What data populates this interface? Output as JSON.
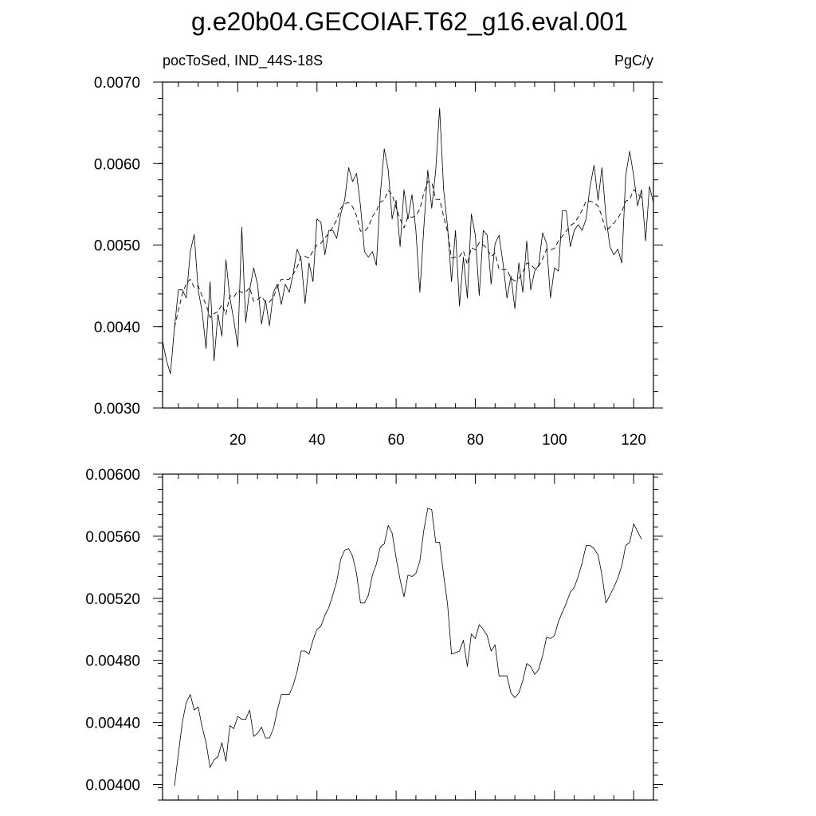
{
  "title": "g.e20b04.GECOIAF.T62_g16.eval.001",
  "chart_data": [
    {
      "type": "line",
      "left_label": "pocToSed, IND_44S-18S",
      "right_label": "PgC/y",
      "xlim": [
        1,
        125
      ],
      "ylim": [
        0.003,
        0.007
      ],
      "xticks": [
        20,
        40,
        60,
        80,
        100,
        120
      ],
      "xtick_labels": [
        "20",
        "40",
        "60",
        "80",
        "100",
        "120"
      ],
      "yticks": [
        0.003,
        0.004,
        0.005,
        0.006,
        0.007
      ],
      "ytick_labels": [
        "0.0030",
        "0.0040",
        "0.0050",
        "0.0060",
        "0.0070"
      ],
      "series": [
        {
          "style": "solid",
          "x": [
            1,
            2,
            3,
            4,
            5,
            6,
            7,
            8,
            9,
            10,
            11,
            12,
            13,
            14,
            15,
            16,
            17,
            18,
            19,
            20,
            21,
            22,
            23,
            24,
            25,
            26,
            27,
            28,
            29,
            30,
            31,
            32,
            33,
            34,
            35,
            36,
            37,
            38,
            39,
            40,
            41,
            42,
            43,
            44,
            45,
            46,
            47,
            48,
            49,
            50,
            51,
            52,
            53,
            54,
            55,
            56,
            57,
            58,
            59,
            60,
            61,
            62,
            63,
            64,
            65,
            66,
            67,
            68,
            69,
            70,
            71,
            72,
            73,
            74,
            75,
            76,
            77,
            78,
            79,
            80,
            81,
            82,
            83,
            84,
            85,
            86,
            87,
            88,
            89,
            90,
            91,
            92,
            93,
            94,
            95,
            96,
            97,
            98,
            99,
            100,
            101,
            102,
            103,
            104,
            105,
            106,
            107,
            108,
            109,
            110,
            111,
            112,
            113,
            114,
            115,
            116,
            117,
            118,
            119,
            120,
            121,
            122,
            123,
            124,
            125
          ],
          "values": [
            0.00382,
            0.00358,
            0.00342,
            0.00398,
            0.00445,
            0.00445,
            0.00435,
            0.00492,
            0.00513,
            0.00445,
            0.00418,
            0.00373,
            0.00455,
            0.00358,
            0.00415,
            0.00388,
            0.00482,
            0.00435,
            0.00408,
            0.00375,
            0.00522,
            0.00405,
            0.00445,
            0.00472,
            0.00452,
            0.00403,
            0.00432,
            0.00401,
            0.00442,
            0.00452,
            0.00427,
            0.00452,
            0.00442,
            0.00465,
            0.00495,
            0.00482,
            0.00428,
            0.00478,
            0.00455,
            0.00532,
            0.00528,
            0.00488,
            0.00518,
            0.00518,
            0.00508,
            0.00538,
            0.00555,
            0.00595,
            0.00578,
            0.00588,
            0.00548,
            0.00492,
            0.00485,
            0.00492,
            0.00475,
            0.00562,
            0.00618,
            0.00592,
            0.00532,
            0.00555,
            0.00498,
            0.00568,
            0.00532,
            0.00562,
            0.00518,
            0.00442,
            0.00522,
            0.00592,
            0.00545,
            0.00592,
            0.00668,
            0.00568,
            0.00522,
            0.00455,
            0.00518,
            0.00425,
            0.00485,
            0.00435,
            0.00538,
            0.00512,
            0.00438,
            0.00518,
            0.00512,
            0.00452,
            0.00502,
            0.00512,
            0.00478,
            0.00435,
            0.00462,
            0.00422,
            0.00478,
            0.00442,
            0.00505,
            0.00445,
            0.00468,
            0.00475,
            0.00515,
            0.00502,
            0.00435,
            0.00472,
            0.00468,
            0.00542,
            0.00542,
            0.00498,
            0.00518,
            0.00525,
            0.00518,
            0.00532,
            0.00572,
            0.00598,
            0.00555,
            0.00595,
            0.00535,
            0.00498,
            0.00488,
            0.00495,
            0.00478,
            0.00585,
            0.00615,
            0.00585,
            0.00548,
            0.00568,
            0.00505,
            0.00572,
            0.00552
          ]
        },
        {
          "style": "dashed",
          "x": [
            4,
            5,
            6,
            7,
            8,
            9,
            10,
            11,
            12,
            13,
            14,
            15,
            16,
            17,
            18,
            19,
            20,
            21,
            22,
            23,
            24,
            25,
            26,
            27,
            28,
            29,
            30,
            31,
            32,
            33,
            34,
            35,
            36,
            37,
            38,
            39,
            40,
            41,
            42,
            43,
            44,
            45,
            46,
            47,
            48,
            49,
            50,
            51,
            52,
            53,
            54,
            55,
            56,
            57,
            58,
            59,
            60,
            61,
            62,
            63,
            64,
            65,
            66,
            67,
            68,
            69,
            70,
            71,
            72,
            73,
            74,
            75,
            76,
            77,
            78,
            79,
            80,
            81,
            82,
            83,
            84,
            85,
            86,
            87,
            88,
            89,
            90,
            91,
            92,
            93,
            94,
            95,
            96,
            97,
            98,
            99,
            100,
            101,
            102,
            103,
            104,
            105,
            106,
            107,
            108,
            109,
            110,
            111,
            112,
            113,
            114,
            115,
            116,
            117,
            118,
            119,
            120,
            121,
            122
          ],
          "values": [
            0.00399,
            0.0042,
            0.0044,
            0.00453,
            0.00458,
            0.00448,
            0.0045,
            0.00437,
            0.00427,
            0.00411,
            0.00416,
            0.00418,
            0.00427,
            0.00415,
            0.00438,
            0.00436,
            0.00444,
            0.00442,
            0.00442,
            0.00448,
            0.00431,
            0.00433,
            0.00437,
            0.0043,
            0.0043,
            0.00436,
            0.00448,
            0.00458,
            0.00458,
            0.00458,
            0.00464,
            0.00473,
            0.00486,
            0.00486,
            0.00484,
            0.00493,
            0.005,
            0.00502,
            0.00509,
            0.00514,
            0.00522,
            0.00531,
            0.00545,
            0.00551,
            0.00552,
            0.00547,
            0.00536,
            0.00517,
            0.00517,
            0.00522,
            0.00535,
            0.00542,
            0.00553,
            0.00555,
            0.00567,
            0.00562,
            0.00546,
            0.00532,
            0.00521,
            0.00535,
            0.00534,
            0.00536,
            0.00544,
            0.00564,
            0.00578,
            0.00577,
            0.00556,
            0.00556,
            0.00535,
            0.00516,
            0.00484,
            0.00485,
            0.00486,
            0.00493,
            0.00476,
            0.00497,
            0.00494,
            0.00503,
            0.005,
            0.00496,
            0.00486,
            0.0049,
            0.0047,
            0.0047,
            0.0047,
            0.00459,
            0.00456,
            0.00459,
            0.00467,
            0.00478,
            0.00476,
            0.00471,
            0.00474,
            0.00483,
            0.00495,
            0.00494,
            0.00496,
            0.00505,
            0.00511,
            0.00517,
            0.00524,
            0.00527,
            0.00534,
            0.00543,
            0.00554,
            0.00554,
            0.00552,
            0.00548,
            0.00535,
            0.00517,
            0.00522,
            0.00527,
            0.00533,
            0.00541,
            0.00554,
            0.00556,
            0.00568,
            0.00563,
            0.00558
          ]
        }
      ]
    },
    {
      "type": "line",
      "xlim": [
        1,
        125
      ],
      "ylim": [
        0.0039,
        0.006
      ],
      "yticks": [
        0.004,
        0.0044,
        0.0048,
        0.0052,
        0.0056,
        0.006
      ],
      "ytick_labels": [
        "0.00400",
        "0.00440",
        "0.00480",
        "0.00520",
        "0.00560",
        "0.00600"
      ],
      "series": [
        {
          "style": "solid",
          "x": [
            4,
            5,
            6,
            7,
            8,
            9,
            10,
            11,
            12,
            13,
            14,
            15,
            16,
            17,
            18,
            19,
            20,
            21,
            22,
            23,
            24,
            25,
            26,
            27,
            28,
            29,
            30,
            31,
            32,
            33,
            34,
            35,
            36,
            37,
            38,
            39,
            40,
            41,
            42,
            43,
            44,
            45,
            46,
            47,
            48,
            49,
            50,
            51,
            52,
            53,
            54,
            55,
            56,
            57,
            58,
            59,
            60,
            61,
            62,
            63,
            64,
            65,
            66,
            67,
            68,
            69,
            70,
            71,
            72,
            73,
            74,
            75,
            76,
            77,
            78,
            79,
            80,
            81,
            82,
            83,
            84,
            85,
            86,
            87,
            88,
            89,
            90,
            91,
            92,
            93,
            94,
            95,
            96,
            97,
            98,
            99,
            100,
            101,
            102,
            103,
            104,
            105,
            106,
            107,
            108,
            109,
            110,
            111,
            112,
            113,
            114,
            115,
            116,
            117,
            118,
            119,
            120,
            121,
            122
          ],
          "values": [
            0.00399,
            0.0042,
            0.0044,
            0.00453,
            0.00458,
            0.00448,
            0.0045,
            0.00437,
            0.00427,
            0.00411,
            0.00416,
            0.00418,
            0.00427,
            0.00415,
            0.00438,
            0.00436,
            0.00444,
            0.00442,
            0.00442,
            0.00448,
            0.00431,
            0.00433,
            0.00437,
            0.0043,
            0.0043,
            0.00436,
            0.00448,
            0.00458,
            0.00458,
            0.00458,
            0.00464,
            0.00473,
            0.00486,
            0.00486,
            0.00484,
            0.00493,
            0.005,
            0.00502,
            0.00509,
            0.00514,
            0.00522,
            0.00531,
            0.00545,
            0.00551,
            0.00552,
            0.00547,
            0.00536,
            0.00517,
            0.00517,
            0.00522,
            0.00535,
            0.00542,
            0.00553,
            0.00555,
            0.00567,
            0.00562,
            0.00546,
            0.00532,
            0.00521,
            0.00535,
            0.00534,
            0.00536,
            0.00544,
            0.00564,
            0.00578,
            0.00577,
            0.00556,
            0.00556,
            0.00535,
            0.00516,
            0.00484,
            0.00485,
            0.00486,
            0.00493,
            0.00476,
            0.00497,
            0.00494,
            0.00503,
            0.005,
            0.00496,
            0.00486,
            0.0049,
            0.0047,
            0.0047,
            0.0047,
            0.00459,
            0.00456,
            0.00459,
            0.00467,
            0.00478,
            0.00476,
            0.00471,
            0.00474,
            0.00483,
            0.00495,
            0.00494,
            0.00496,
            0.00505,
            0.00511,
            0.00517,
            0.00524,
            0.00527,
            0.00534,
            0.00543,
            0.00554,
            0.00554,
            0.00552,
            0.00548,
            0.00535,
            0.00517,
            0.00522,
            0.00527,
            0.00533,
            0.00541,
            0.00554,
            0.00556,
            0.00568,
            0.00563,
            0.00558
          ]
        }
      ]
    }
  ]
}
